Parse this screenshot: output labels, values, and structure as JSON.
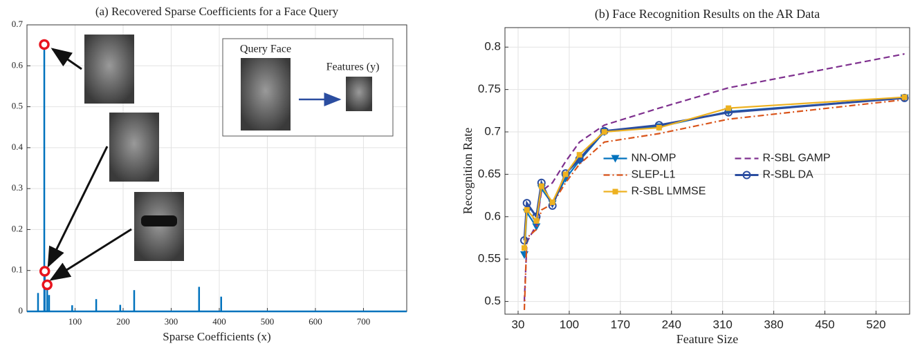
{
  "chart_data": [
    {
      "type": "stem",
      "title": "(a) Recovered Sparse Coefficients for a Face Query",
      "x_label": "Sparse Coefficients (x)",
      "x": [
        23,
        36,
        37,
        42,
        46,
        94,
        144,
        194,
        223,
        358,
        404
      ],
      "values": [
        0.045,
        0.652,
        0.098,
        0.065,
        0.04,
        0.015,
        0.03,
        0.016,
        0.052,
        0.06,
        0.036
      ],
      "color": "#0072bd",
      "circled": [
        1,
        2,
        3
      ],
      "circle_color": "#e8141e",
      "xlim": [
        0,
        790
      ],
      "ylim": [
        0,
        0.7
      ],
      "xticks": [
        100,
        200,
        300,
        400,
        500,
        600,
        700
      ],
      "yticks": [
        0,
        0.1,
        0.2,
        0.3,
        0.4,
        0.5,
        0.6,
        0.7
      ],
      "grid": true,
      "annotations": [
        "Query Face",
        "Features (y)"
      ]
    },
    {
      "type": "line",
      "title": "(b) Face Recognition Results on the AR Data",
      "x_label": "Feature Size",
      "y_label": "Recognition Rate",
      "x": [
        38.5,
        42,
        55,
        62,
        77,
        95,
        114,
        148,
        223,
        318,
        559
      ],
      "series": [
        {
          "name": "NN-OMP",
          "color": "#0072bd",
          "marker": "triangle-down",
          "dash": "solid",
          "values": [
            0.555,
            0.605,
            0.588,
            0.633,
            0.615,
            0.645,
            0.666,
            0.7,
            0.706,
            0.724,
            0.74
          ]
        },
        {
          "name": "R-SBL GAMP",
          "color": "#7e2f8e",
          "marker": "none",
          "dash": "dashed",
          "values": [
            0.5,
            0.57,
            0.59,
            0.63,
            0.64,
            0.665,
            0.688,
            0.708,
            0.728,
            0.752,
            0.792
          ]
        },
        {
          "name": "SLEP-L1",
          "color": "#d95319",
          "marker": "none",
          "dash": "dashdot",
          "values": [
            0.49,
            0.575,
            0.585,
            0.608,
            0.615,
            0.64,
            0.662,
            0.688,
            0.698,
            0.715,
            0.738
          ]
        },
        {
          "name": "R-SBL DA",
          "color": "#2b4da0",
          "marker": "circle",
          "dash": "solid",
          "values": [
            0.572,
            0.616,
            0.6,
            0.64,
            0.613,
            0.651,
            0.668,
            0.701,
            0.708,
            0.723,
            0.74
          ]
        },
        {
          "name": "R-SBL LMMSE",
          "color": "#edb120",
          "marker": "square",
          "dash": "solid",
          "values": [
            0.563,
            0.608,
            0.595,
            0.636,
            0.617,
            0.65,
            0.673,
            0.7,
            0.705,
            0.728,
            0.741
          ]
        }
      ],
      "xlim": [
        12,
        566
      ],
      "ylim": [
        0.485,
        0.823
      ],
      "xticks": [
        30,
        100,
        170,
        240,
        310,
        380,
        450,
        520
      ],
      "yticks": [
        0.5,
        0.55,
        0.6,
        0.65,
        0.7,
        0.75,
        0.8
      ],
      "grid": true,
      "legend": "center",
      "legend_columns": 2
    }
  ]
}
